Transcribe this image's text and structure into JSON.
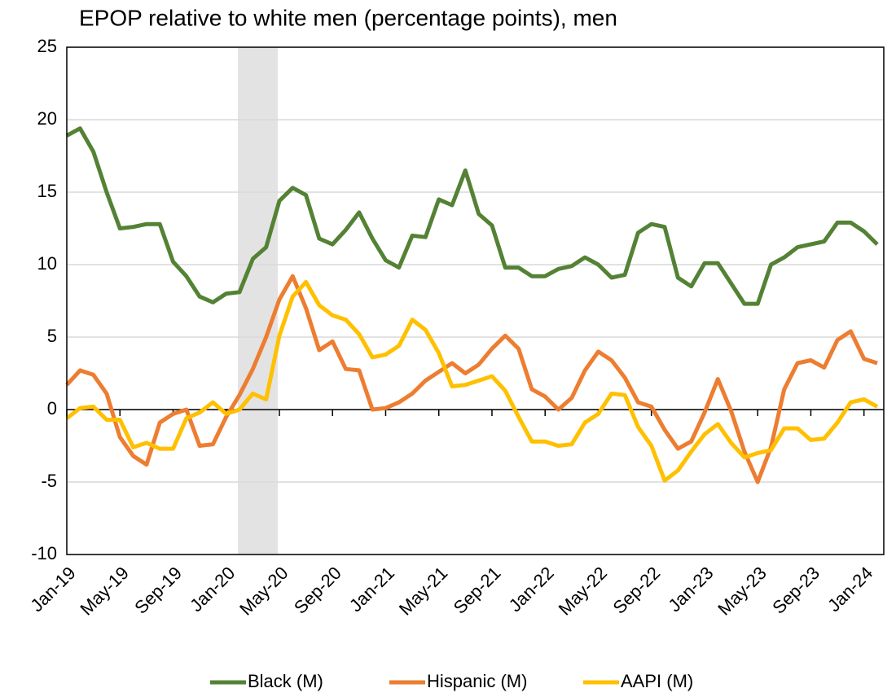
{
  "chart_data": {
    "type": "line",
    "title": "EPOP relative to white men (percentage points), men",
    "categories": [
      "Jan-19",
      null,
      null,
      null,
      "May-19",
      null,
      null,
      null,
      "Sep-19",
      null,
      null,
      null,
      "Jan-20",
      null,
      null,
      null,
      "May-20",
      null,
      null,
      null,
      "Sep-20",
      null,
      null,
      null,
      "Jan-21",
      null,
      null,
      null,
      "May-21",
      null,
      null,
      null,
      "Sep-21",
      null,
      null,
      null,
      "Jan-22",
      null,
      null,
      null,
      "May-22",
      null,
      null,
      null,
      "Sep-22",
      null,
      null,
      null,
      "Jan-23",
      null,
      null,
      null,
      "May-23",
      null,
      null,
      null,
      "Sep-23",
      null,
      null,
      null,
      "Jan-24",
      null
    ],
    "series": [
      {
        "name": "Black (M)",
        "color": "#548235",
        "values": [
          18.9,
          19.4,
          17.8,
          15,
          12.5,
          12.6,
          12.8,
          12.8,
          10.2,
          9.2,
          7.8,
          7.4,
          8.0,
          8.1,
          10.4,
          11.2,
          14.4,
          15.3,
          14.8,
          11.8,
          11.4,
          12.4,
          13.6,
          11.8,
          10.3,
          9.8,
          12.0,
          11.9,
          14.5,
          14.1,
          16.5,
          13.5,
          12.7,
          9.8,
          9.8,
          9.2,
          9.2,
          9.7,
          9.9,
          10.5,
          10.0,
          9.1,
          9.3,
          12.2,
          12.8,
          12.6,
          9.1,
          8.5,
          10.1,
          10.1,
          8.7,
          7.3,
          7.3,
          10.0,
          10.5,
          11.2,
          11.4,
          11.6,
          12.9,
          12.9,
          12.3,
          11.4
        ]
      },
      {
        "name": "Hispanic (M)",
        "color": "#ed7d31",
        "values": [
          1.7,
          2.7,
          2.4,
          1.1,
          -1.9,
          -3.2,
          -3.8,
          -0.9,
          -0.3,
          0.0,
          -2.5,
          -2.4,
          -0.5,
          1.0,
          2.8,
          5.0,
          7.6,
          9.2,
          7.0,
          4.1,
          4.7,
          2.8,
          2.7,
          0.0,
          0.1,
          0.5,
          1.1,
          2.0,
          2.6,
          3.2,
          2.5,
          3.1,
          4.2,
          5.1,
          4.2,
          1.4,
          0.9,
          0.0,
          0.8,
          2.7,
          4.0,
          3.4,
          2.2,
          0.5,
          0.2,
          -1.4,
          -2.7,
          -2.2,
          -0.2,
          2.1,
          -0.1,
          -2.9,
          -5.0,
          -2.6,
          1.4,
          3.2,
          3.4,
          2.9,
          4.8,
          5.4,
          3.5,
          3.2
        ]
      },
      {
        "name": "AAPI (M)",
        "color": "#ffc000",
        "values": [
          -0.6,
          0.1,
          0.2,
          -0.7,
          -0.7,
          -2.6,
          -2.3,
          -2.7,
          -2.7,
          -0.6,
          -0.2,
          0.5,
          -0.3,
          0.0,
          1.1,
          0.7,
          5.1,
          7.8,
          8.8,
          7.2,
          6.5,
          6.2,
          5.2,
          3.6,
          3.8,
          4.4,
          6.2,
          5.5,
          3.9,
          1.6,
          1.7,
          2.0,
          2.3,
          1.3,
          -0.5,
          -2.2,
          -2.2,
          -2.5,
          -2.4,
          -0.9,
          -0.3,
          1.1,
          1.0,
          -1.2,
          -2.5,
          -4.9,
          -4.2,
          -2.9,
          -1.7,
          -1.0,
          -2.3,
          -3.3,
          -3.0,
          -2.8,
          -1.3,
          -1.3,
          -2.1,
          -2.0,
          -0.9,
          0.5,
          0.7,
          0.2
        ]
      }
    ],
    "ylim": [
      -10,
      25
    ],
    "yticks": [
      -10,
      -5,
      0,
      5,
      10,
      15,
      20,
      25
    ],
    "grid": true,
    "legend": "bottom"
  }
}
